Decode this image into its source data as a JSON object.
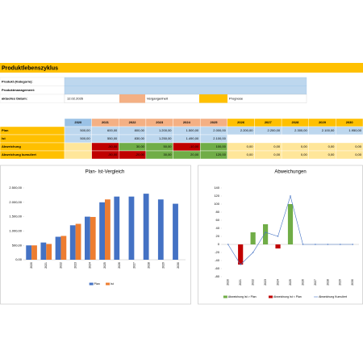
{
  "header": {
    "title": "Produktlebenszyklus"
  },
  "info": {
    "product_label": "Produkt (Kategorie):",
    "management_label": "Produktmanagement:",
    "date_label": "aktuelles Datum:",
    "date": "12.02.2026",
    "past_legend": "Vergangenheit",
    "forecast_legend": "Prognose"
  },
  "table": {
    "years": [
      "2020",
      "2021",
      "2022",
      "2023",
      "2024",
      "2025",
      "2026",
      "2027",
      "2028",
      "2029",
      "2030"
    ],
    "rows": [
      {
        "label": "Plan",
        "cells": [
          "500,00",
          "600,00",
          "800,00",
          "1.200,00",
          "1.500,00",
          "2.000,00",
          "2.200,00",
          "2.200,00",
          "2.300,00",
          "2.100,00",
          "1.950,00"
        ]
      },
      {
        "label": "Ist",
        "cells": [
          "500,00",
          "550,00",
          "830,00",
          "1.250,00",
          "1.490,00",
          "2.100,00",
          null,
          null,
          null,
          null,
          null
        ]
      },
      {
        "label": "Abweichung",
        "cells": [
          null,
          "-50,00",
          "30,00",
          "50,00",
          "-10,00",
          "100,00",
          "0,00",
          "0,00",
          "0,00",
          "0,00",
          "0,00"
        ]
      },
      {
        "label": "Abweichung kumuliert",
        "cells": [
          null,
          "-50,00",
          "-20,00",
          "30,00",
          "20,00",
          "120,00",
          "0,00",
          "0,00",
          "0,00",
          "0,00",
          "0,00"
        ]
      }
    ]
  },
  "chart_data": [
    {
      "type": "bar",
      "title": "Plan- Ist-Vergleich",
      "categories": [
        "2020",
        "2021",
        "2022",
        "2023",
        "2024",
        "2025",
        "2026",
        "2027",
        "2028",
        "2029",
        "2030"
      ],
      "series": [
        {
          "name": "Plan",
          "color": "#4472c4",
          "values": [
            500,
            600,
            800,
            1200,
            1500,
            2000,
            2200,
            2200,
            2300,
            2100,
            1950
          ]
        },
        {
          "name": "Ist",
          "color": "#ed7d31",
          "values": [
            500,
            550,
            830,
            1250,
            1490,
            2100,
            null,
            null,
            null,
            null,
            null
          ]
        }
      ],
      "ylim": [
        0,
        2500
      ],
      "yticks": [
        {
          "value": 0,
          "label": "0,00"
        },
        {
          "value": 500,
          "label": "500,00"
        },
        {
          "value": 1000,
          "label": "1.000,00"
        },
        {
          "value": 1500,
          "label": "1.500,00"
        },
        {
          "value": 2000,
          "label": "2.000,00"
        },
        {
          "value": 2500,
          "label": "2.500,00"
        }
      ],
      "grid": false,
      "legend": "bottom"
    },
    {
      "type": "combo",
      "title": "Abweichungen",
      "categories": [
        "2020",
        "2021",
        "2022",
        "2023",
        "2024",
        "2025",
        "2026",
        "2027",
        "2028",
        "2029",
        "2030"
      ],
      "series": [
        {
          "name": "Abweichung Ist > Plan",
          "type": "bar",
          "color": "#70ad47",
          "values": [
            null,
            null,
            30,
            50,
            null,
            100,
            null,
            null,
            null,
            null,
            null
          ]
        },
        {
          "name": "Abweichung Ist < Plan",
          "type": "bar",
          "color": "#c00000",
          "values": [
            null,
            -50,
            null,
            null,
            -10,
            null,
            null,
            null,
            null,
            null,
            null
          ]
        },
        {
          "name": "Abweichung Kumuliert",
          "type": "line",
          "color": "#4472c4",
          "values": [
            0,
            -50,
            -20,
            30,
            20,
            120,
            0,
            0,
            0,
            0,
            0
          ]
        }
      ],
      "ylim": [
        -80,
        140
      ],
      "yticks": [
        -80,
        -60,
        -40,
        -20,
        0,
        20,
        40,
        60,
        80,
        100,
        120,
        140
      ],
      "grid": false,
      "legend": "bottom"
    }
  ]
}
